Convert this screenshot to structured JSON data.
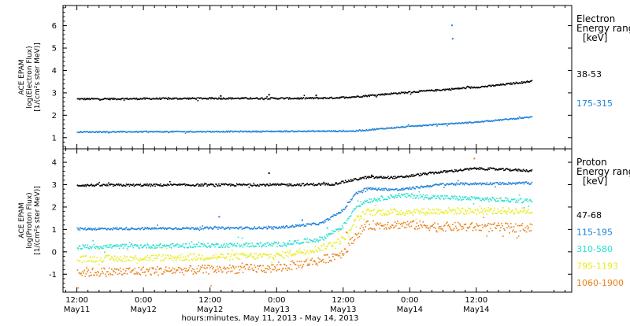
{
  "chart_data": {
    "type": "scatter",
    "xlabel": "hours:minutes, May 11, 2013 - May 14, 2013",
    "x_ticks": [
      {
        "line1": "12:00",
        "line2": "May11"
      },
      {
        "line1": "0:00",
        "line2": "May12"
      },
      {
        "line1": "12:00",
        "line2": "May12"
      },
      {
        "line1": "0:00",
        "line2": "May13"
      },
      {
        "line1": "12:00",
        "line2": "May13"
      },
      {
        "line1": "0:00",
        "line2": "May14"
      },
      {
        "line1": "12:00",
        "line2": "May14"
      }
    ],
    "xlim_hours": [
      -2.5,
      89.2
    ],
    "panels": [
      {
        "id": "electron",
        "ylabel_lines": [
          "ACE EPAM",
          "log(Electron Flux)",
          "[1/(cm²s ster MeV)]"
        ],
        "ylim": [
          0.5,
          6.9
        ],
        "yticks": [
          1,
          2,
          3,
          4,
          5,
          6
        ],
        "legend_title_lines": [
          "Electron",
          "Energy ranges",
          "[keV]"
        ],
        "series": [
          {
            "name": "38-53",
            "color": "#000000",
            "jitter": 0.035,
            "keyframes": [
              [
                0,
                2.75
              ],
              [
                24,
                2.78
              ],
              [
                40,
                2.78
              ],
              [
                46,
                2.8
              ],
              [
                50,
                2.85
              ],
              [
                57,
                3.0
              ],
              [
                65,
                3.15
              ],
              [
                74,
                3.32
              ],
              [
                82,
                3.55
              ]
            ],
            "outliers": [
              [
                25.8,
                2.9
              ],
              [
                34.5,
                2.95
              ],
              [
                43,
                2.92
              ]
            ]
          },
          {
            "name": "175-315",
            "color": "#1e82d8",
            "jitter": 0.025,
            "keyframes": [
              [
                0,
                1.28
              ],
              [
                30,
                1.3
              ],
              [
                50,
                1.32
              ],
              [
                56,
                1.45
              ],
              [
                64,
                1.6
              ],
              [
                72,
                1.72
              ],
              [
                82,
                1.95
              ]
            ],
            "outliers": [
              [
                67.5,
                6.05
              ],
              [
                67.6,
                5.45
              ]
            ]
          }
        ]
      },
      {
        "id": "proton",
        "ylabel_lines": [
          "ACE EPAM",
          "log(Proton Flux)",
          "[1/(cm²s ster MeV)]"
        ],
        "ylim": [
          -1.8,
          4.6
        ],
        "yticks": [
          -1,
          0,
          1,
          2,
          3,
          4
        ],
        "legend_title_lines": [
          "Proton",
          "Energy ranges",
          "[keV]"
        ],
        "series": [
          {
            "name": "47-68",
            "color": "#000000",
            "jitter": 0.05,
            "keyframes": [
              [
                0,
                3.0
              ],
              [
                38,
                3.02
              ],
              [
                46,
                3.05
              ],
              [
                49,
                3.2
              ],
              [
                52,
                3.35
              ],
              [
                58,
                3.35
              ],
              [
                64,
                3.55
              ],
              [
                72,
                3.75
              ],
              [
                82,
                3.65
              ]
            ],
            "outliers": [
              [
                34.5,
                3.55
              ],
              [
                53,
                3.45
              ]
            ]
          },
          {
            "name": "115-195",
            "color": "#1e82d8",
            "jitter": 0.05,
            "keyframes": [
              [
                0,
                1.05
              ],
              [
                36,
                1.1
              ],
              [
                44,
                1.3
              ],
              [
                48,
                1.9
              ],
              [
                50,
                2.6
              ],
              [
                52,
                2.85
              ],
              [
                58,
                2.8
              ],
              [
                66,
                3.05
              ],
              [
                82,
                3.1
              ]
            ],
            "outliers": [
              [
                25.5,
                1.6
              ],
              [
                40.5,
                1.45
              ]
            ]
          },
          {
            "name": "310-580",
            "color": "#29e0d0",
            "jitter": 0.1,
            "keyframes": [
              [
                0,
                0.25
              ],
              [
                36,
                0.35
              ],
              [
                44,
                0.6
              ],
              [
                48,
                1.2
              ],
              [
                50,
                2.0
              ],
              [
                52,
                2.3
              ],
              [
                58,
                2.55
              ],
              [
                66,
                2.45
              ],
              [
                82,
                2.3
              ]
            ],
            "outliers": [
              [
                45,
                1.1
              ]
            ]
          },
          {
            "name": "795-1193",
            "color": "#e8ec1e",
            "jitter": 0.15,
            "keyframes": [
              [
                0,
                -0.3
              ],
              [
                36,
                -0.15
              ],
              [
                44,
                0.2
              ],
              [
                48,
                0.6
              ],
              [
                50,
                1.4
              ],
              [
                52,
                1.8
              ],
              [
                58,
                1.8
              ],
              [
                66,
                1.85
              ],
              [
                82,
                1.85
              ]
            ],
            "outliers": [
              [
                47,
                0.95
              ]
            ]
          },
          {
            "name": "1060-1900",
            "color": "#e8801a",
            "jitter": 0.2,
            "keyframes": [
              [
                0,
                -0.9
              ],
              [
                36,
                -0.7
              ],
              [
                44,
                -0.35
              ],
              [
                48,
                0.0
              ],
              [
                50,
                0.7
              ],
              [
                52,
                1.2
              ],
              [
                58,
                1.25
              ],
              [
                66,
                1.15
              ],
              [
                82,
                1.1
              ]
            ],
            "outliers": [
              [
                71.5,
                4.2
              ],
              [
                48.5,
                0.9
              ]
            ]
          }
        ]
      }
    ]
  }
}
